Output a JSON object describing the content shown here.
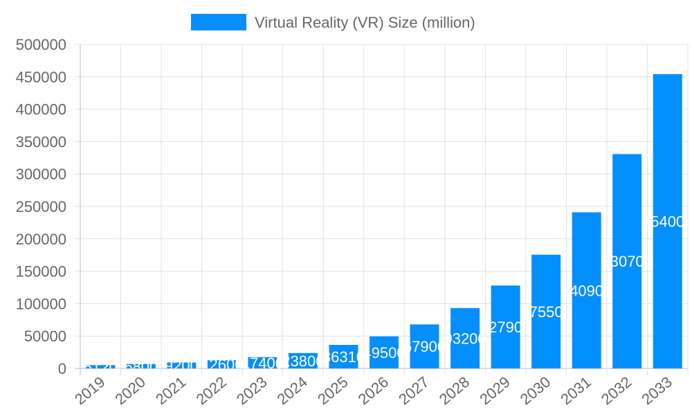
{
  "chart_data": {
    "type": "bar",
    "title": "",
    "xlabel": "",
    "ylabel": "",
    "legend": {
      "position": "top",
      "entries": [
        "Virtual Reality (VR) Size (million)"
      ]
    },
    "categories": [
      "2019",
      "2020",
      "2021",
      "2022",
      "2023",
      "2024",
      "2025",
      "2026",
      "2027",
      "2028",
      "2029",
      "2030",
      "2031",
      "2032",
      "2033"
    ],
    "series": [
      {
        "name": "Virtual Reality (VR) Size (million)",
        "values": [
          5120,
          6800,
          9200,
          12600,
          17400,
          23800,
          36310,
          49500,
          67900,
          93200,
          127900,
          175500,
          240900,
          330700,
          454000
        ],
        "color": "#038ffd"
      }
    ],
    "ylim": [
      0,
      500000
    ],
    "yticks": [
      0,
      50000,
      100000,
      150000,
      200000,
      250000,
      300000,
      350000,
      400000,
      450000,
      500000
    ],
    "grid": true,
    "data_labels": true
  }
}
